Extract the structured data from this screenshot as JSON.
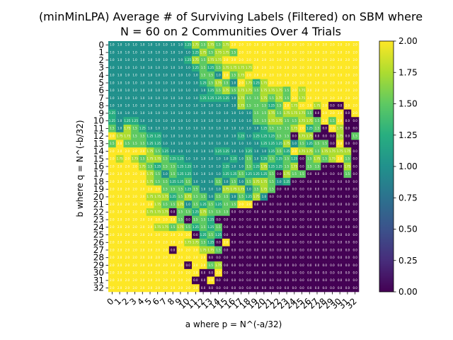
{
  "chart_data": {
    "type": "heatmap",
    "title_lines": [
      "(minMinLPA) Average # of Surviving Labels (Filtered) on SBM where",
      "N = 60 on 2 Communities Over 4 Trials"
    ],
    "xlabel": "a where p = N^(-a/32)",
    "ylabel": "b where q = N^(-b/32)",
    "x_ticks": [
      "0",
      "1",
      "2",
      "3",
      "4",
      "5",
      "6",
      "7",
      "8",
      "9",
      "10",
      "11",
      "12",
      "13",
      "14",
      "15",
      "16",
      "17",
      "18",
      "19",
      "20",
      "21",
      "22",
      "23",
      "24",
      "25",
      "26",
      "27",
      "28",
      "29",
      "30",
      "31",
      "32"
    ],
    "y_ticks": [
      "0",
      "1",
      "2",
      "3",
      "4",
      "5",
      "6",
      "7",
      "8",
      "9",
      "10",
      "11",
      "12",
      "13",
      "14",
      "15",
      "16",
      "17",
      "18",
      "19",
      "20",
      "21",
      "22",
      "23",
      "24",
      "25",
      "26",
      "27",
      "28",
      "29",
      "30",
      "31",
      "32"
    ],
    "colorbar": {
      "min": 0.0,
      "max": 2.0,
      "colormap": "viridis",
      "ticks": [
        "0.00",
        "0.25",
        "0.50",
        "0.75",
        "1.00",
        "1.25",
        "1.50",
        "1.75",
        "2.00"
      ]
    },
    "values": [
      [
        1.0,
        1.0,
        1.0,
        1.0,
        1.0,
        1.0,
        1.0,
        1.0,
        1.0,
        1.0,
        1.25,
        1.75,
        1.5,
        1.75,
        1.5,
        1.75,
        2.0,
        2.0,
        2.0,
        2.0,
        2.0,
        2.0,
        2.0,
        2.0,
        2.0,
        2.0,
        2.0,
        2.0,
        2.0,
        2.0,
        2.0,
        2.0,
        2.0
      ],
      [
        1.0,
        1.0,
        1.0,
        1.0,
        1.0,
        1.0,
        1.0,
        1.0,
        1.0,
        1.0,
        1.0,
        1.25,
        1.75,
        1.5,
        1.75,
        1.75,
        1.5,
        2.0,
        2.0,
        2.0,
        2.0,
        2.0,
        2.0,
        2.0,
        2.0,
        2.0,
        2.0,
        2.0,
        2.0,
        2.0,
        2.0,
        2.0,
        2.0
      ],
      [
        1.0,
        1.0,
        1.0,
        1.0,
        1.0,
        1.0,
        1.0,
        1.0,
        1.0,
        1.0,
        1.25,
        1.75,
        1.5,
        1.75,
        1.75,
        2.0,
        2.0,
        2.0,
        2.0,
        2.0,
        2.0,
        2.0,
        2.0,
        2.0,
        2.0,
        2.0,
        2.0,
        2.0,
        2.0,
        2.0,
        2.0,
        2.0,
        2.0
      ],
      [
        1.0,
        1.0,
        1.0,
        1.0,
        1.0,
        1.0,
        1.0,
        1.0,
        1.0,
        1.0,
        1.0,
        1.25,
        1.5,
        1.25,
        1.5,
        1.75,
        1.75,
        1.75,
        1.75,
        2.0,
        2.0,
        2.0,
        2.0,
        2.0,
        2.0,
        2.0,
        2.0,
        2.0,
        2.0,
        2.0,
        2.0,
        2.0,
        2.0
      ],
      [
        1.0,
        1.0,
        1.0,
        1.0,
        1.0,
        1.0,
        1.0,
        1.0,
        1.0,
        1.0,
        1.0,
        1.0,
        1.5,
        1.5,
        1.0,
        2.0,
        1.5,
        1.75,
        2.0,
        2.0,
        2.0,
        2.0,
        2.0,
        2.0,
        2.0,
        2.0,
        2.0,
        2.0,
        2.0,
        2.0,
        2.0,
        2.0,
        2.0
      ],
      [
        1.0,
        1.0,
        1.0,
        1.0,
        1.0,
        1.0,
        1.0,
        1.0,
        1.0,
        1.0,
        1.0,
        1.0,
        1.25,
        1.5,
        1.75,
        1.5,
        1.0,
        2.0,
        1.75,
        1.25,
        1.75,
        2.0,
        2.0,
        2.0,
        2.0,
        2.0,
        2.0,
        2.0,
        2.0,
        2.0,
        2.0,
        2.0,
        2.0
      ],
      [
        1.0,
        1.0,
        1.0,
        1.0,
        1.0,
        1.0,
        1.0,
        1.0,
        1.0,
        1.0,
        1.0,
        1.0,
        1.0,
        1.25,
        1.5,
        1.75,
        1.5,
        1.75,
        1.75,
        1.5,
        1.75,
        1.75,
        1.75,
        1.5,
        2.0,
        1.75,
        2.0,
        2.0,
        2.0,
        2.0,
        2.0,
        2.0,
        2.0
      ],
      [
        1.0,
        1.0,
        1.0,
        1.0,
        1.0,
        1.0,
        1.0,
        1.0,
        1.0,
        1.0,
        1.0,
        1.0,
        1.25,
        1.25,
        1.25,
        1.25,
        1.0,
        1.75,
        1.5,
        1.5,
        1.75,
        1.5,
        1.75,
        1.5,
        2.0,
        1.75,
        2.0,
        2.0,
        2.0,
        2.0,
        2.0,
        2.0,
        2.0
      ],
      [
        1.0,
        1.0,
        1.0,
        1.0,
        1.0,
        1.0,
        1.0,
        1.0,
        1.0,
        1.0,
        1.0,
        1.0,
        1.0,
        1.0,
        1.0,
        1.0,
        1.0,
        1.75,
        1.5,
        1.5,
        1.5,
        1.25,
        1.5,
        2.0,
        1.75,
        2.0,
        2.0,
        1.75,
        2.0,
        0.0,
        0.0,
        2.0,
        2.0
      ],
      [
        1.25,
        1.0,
        1.0,
        1.0,
        1.0,
        1.0,
        1.0,
        1.0,
        1.0,
        1.0,
        1.0,
        1.0,
        1.0,
        1.0,
        1.0,
        1.0,
        1.0,
        1.0,
        1.0,
        1.5,
        1.5,
        1.75,
        1.5,
        1.75,
        1.75,
        1.75,
        1.5,
        0.0,
        2.0,
        2.0,
        2.0,
        0.0,
        2.0
      ],
      [
        1.25,
        1.0,
        1.25,
        1.25,
        1.0,
        1.0,
        1.0,
        1.0,
        1.0,
        1.0,
        1.0,
        1.0,
        1.0,
        1.0,
        1.0,
        1.0,
        1.0,
        1.0,
        1.0,
        1.5,
        1.5,
        1.75,
        1.75,
        1.5,
        1.5,
        1.75,
        1.75,
        1.5,
        2.0,
        1.5,
        2.0,
        0.0,
        0.0
      ],
      [
        1.5,
        1.0,
        1.75,
        1.5,
        1.25,
        1.0,
        1.0,
        1.0,
        1.0,
        1.0,
        1.0,
        1.0,
        1.0,
        1.0,
        1.0,
        1.0,
        1.0,
        1.0,
        1.0,
        1.0,
        1.25,
        1.5,
        1.5,
        1.5,
        1.75,
        2.0,
        1.25,
        1.5,
        0.0,
        2.0,
        1.75,
        0.0,
        0.0
      ],
      [
        2.0,
        1.75,
        1.75,
        1.5,
        1.5,
        1.25,
        1.25,
        1.0,
        1.0,
        1.0,
        1.0,
        1.0,
        1.0,
        1.0,
        1.0,
        1.0,
        1.0,
        1.25,
        1.0,
        1.25,
        1.25,
        1.25,
        1.5,
        1.5,
        0.0,
        1.75,
        1.75,
        0.0,
        0.0,
        0.0,
        1.75,
        0.0,
        1.5
      ],
      [
        1.5,
        2.0,
        1.5,
        1.5,
        1.5,
        1.25,
        1.25,
        1.0,
        1.0,
        1.0,
        1.0,
        1.0,
        1.0,
        1.0,
        1.0,
        1.0,
        1.0,
        1.0,
        1.0,
        1.0,
        1.25,
        1.25,
        1.25,
        1.75,
        1.0,
        1.5,
        1.25,
        1.5,
        1.5,
        0.0,
        2.0,
        0.0,
        0.0
      ],
      [
        2.0,
        2.0,
        2.0,
        2.0,
        2.0,
        1.75,
        1.5,
        1.25,
        1.0,
        1.0,
        1.0,
        1.0,
        1.0,
        1.0,
        1.25,
        1.25,
        1.0,
        1.0,
        1.25,
        1.0,
        1.0,
        1.25,
        1.5,
        1.25,
        2.0,
        1.75,
        1.75,
        1.5,
        1.75,
        1.75,
        1.75,
        1.75,
        0.0
      ],
      [
        2.0,
        1.75,
        2.0,
        1.75,
        1.5,
        1.75,
        1.75,
        1.5,
        1.25,
        1.25,
        1.0,
        1.0,
        1.0,
        1.0,
        1.0,
        1.0,
        1.25,
        1.0,
        1.5,
        1.0,
        1.25,
        1.5,
        1.25,
        1.5,
        1.25,
        0.0,
        1.5,
        1.75,
        1.5,
        1.75,
        2.0,
        1.5,
        0.0
      ],
      [
        2.0,
        2.0,
        2.0,
        2.0,
        1.75,
        1.5,
        1.25,
        1.5,
        1.5,
        1.25,
        1.25,
        1.0,
        1.0,
        1.0,
        1.0,
        1.25,
        1.0,
        1.0,
        1.5,
        1.25,
        1.75,
        1.25,
        1.25,
        1.5,
        1.75,
        0.0,
        1.5,
        1.5,
        0.0,
        0.0,
        0.0,
        1.75,
        0.0
      ],
      [
        2.0,
        2.0,
        2.0,
        2.0,
        2.0,
        1.75,
        1.5,
        1.0,
        1.5,
        1.25,
        1.25,
        1.0,
        1.0,
        1.0,
        1.0,
        1.25,
        1.25,
        1.5,
        1.25,
        1.25,
        1.25,
        1.5,
        0.0,
        1.75,
        1.5,
        1.5,
        0.0,
        0.0,
        0.0,
        0.0,
        0.0,
        1.5,
        0.0
      ],
      [
        2.0,
        2.0,
        2.0,
        2.0,
        2.0,
        1.75,
        1.5,
        1.5,
        1.25,
        1.25,
        1.5,
        1.0,
        1.0,
        1.0,
        1.5,
        1.0,
        1.5,
        1.0,
        1.5,
        1.75,
        1.75,
        1.5,
        1.0,
        1.25,
        0.0,
        0.0,
        0.0,
        0.0,
        0.0,
        0.0,
        0.0,
        0.0,
        0.0
      ],
      [
        2.0,
        2.0,
        2.0,
        2.0,
        2.0,
        2.0,
        2.0,
        1.5,
        1.5,
        1.5,
        1.25,
        1.5,
        1.0,
        1.0,
        1.0,
        1.75,
        1.75,
        1.75,
        1.0,
        1.5,
        1.75,
        1.5,
        0.0,
        0.0,
        0.0,
        0.0,
        0.0,
        0.0,
        0.0,
        0.0,
        0.0,
        0.0,
        0.0
      ],
      [
        2.0,
        2.0,
        2.0,
        2.0,
        2.0,
        1.75,
        1.75,
        1.75,
        1.25,
        1.5,
        1.75,
        1.5,
        1.5,
        1.0,
        1.5,
        1.5,
        1.0,
        1.5,
        1.25,
        1.75,
        1.0,
        0.0,
        0.0,
        0.0,
        0.0,
        0.0,
        0.0,
        0.0,
        0.0,
        0.0,
        0.0,
        0.0,
        0.0
      ],
      [
        2.0,
        2.0,
        2.0,
        2.0,
        2.0,
        2.0,
        1.75,
        1.5,
        1.5,
        1.75,
        1.0,
        1.5,
        1.25,
        1.5,
        1.25,
        1.5,
        1.5,
        2.0,
        2.0,
        0.0,
        0.0,
        0.0,
        0.0,
        0.0,
        0.0,
        0.0,
        0.0,
        0.0,
        0.0,
        0.0,
        0.0,
        0.0,
        0.0
      ],
      [
        2.0,
        2.0,
        2.0,
        2.0,
        2.0,
        1.75,
        1.75,
        1.75,
        0.0,
        1.5,
        1.5,
        1.25,
        1.75,
        1.5,
        1.5,
        1.5,
        0.0,
        0.0,
        0.0,
        0.0,
        0.0,
        0.0,
        0.0,
        0.0,
        0.0,
        0.0,
        0.0,
        0.0,
        0.0,
        0.0,
        0.0,
        0.0,
        0.0
      ],
      [
        2.0,
        2.0,
        2.0,
        2.0,
        2.0,
        2.0,
        2.0,
        2.0,
        2.0,
        1.5,
        0.0,
        1.5,
        1.5,
        1.25,
        0.0,
        0.0,
        0.0,
        0.0,
        0.0,
        0.0,
        0.0,
        0.0,
        0.0,
        0.0,
        0.0,
        0.0,
        0.0,
        0.0,
        0.0,
        0.0,
        0.0,
        0.0,
        0.0
      ],
      [
        2.0,
        2.0,
        2.0,
        2.0,
        2.0,
        2.0,
        1.75,
        1.75,
        1.5,
        1.75,
        1.5,
        1.25,
        1.5,
        1.25,
        1.5,
        0.0,
        0.0,
        0.0,
        0.0,
        0.0,
        0.0,
        0.0,
        0.0,
        0.0,
        0.0,
        0.0,
        0.0,
        0.0,
        0.0,
        0.0,
        0.0,
        0.0,
        0.0
      ],
      [
        2.0,
        2.0,
        2.0,
        2.0,
        2.0,
        2.0,
        2.0,
        2.0,
        2.0,
        2.0,
        2.0,
        0.0,
        1.25,
        1.5,
        1.25,
        0.0,
        0.0,
        0.0,
        0.0,
        0.0,
        0.0,
        0.0,
        0.0,
        0.0,
        0.0,
        0.0,
        0.0,
        0.0,
        0.0,
        0.0,
        0.0,
        0.0,
        0.0
      ],
      [
        2.0,
        2.0,
        2.0,
        2.0,
        2.0,
        2.0,
        2.0,
        2.0,
        2.0,
        2.0,
        1.75,
        1.75,
        1.5,
        1.25,
        0.0,
        2.0,
        0.0,
        0.0,
        0.0,
        0.0,
        0.0,
        0.0,
        0.0,
        0.0,
        0.0,
        0.0,
        0.0,
        0.0,
        0.0,
        0.0,
        0.0,
        0.0,
        0.0
      ],
      [
        2.0,
        2.0,
        2.0,
        2.0,
        2.0,
        2.0,
        2.0,
        2.0,
        0.0,
        2.0,
        2.0,
        2.0,
        1.75,
        1.75,
        1.5,
        0.0,
        0.0,
        0.0,
        0.0,
        0.0,
        0.0,
        0.0,
        0.0,
        0.0,
        0.0,
        0.0,
        0.0,
        0.0,
        0.0,
        0.0,
        0.0,
        0.0,
        0.0
      ],
      [
        2.0,
        2.0,
        2.0,
        2.0,
        2.0,
        2.0,
        2.0,
        2.0,
        2.0,
        2.0,
        2.0,
        2.0,
        2.0,
        0.0,
        0.0,
        0.0,
        0.0,
        0.0,
        0.0,
        0.0,
        0.0,
        0.0,
        0.0,
        0.0,
        0.0,
        0.0,
        0.0,
        0.0,
        0.0,
        0.0,
        0.0,
        0.0,
        0.0
      ],
      [
        2.0,
        2.0,
        2.0,
        2.0,
        2.0,
        2.0,
        2.0,
        2.0,
        2.0,
        2.0,
        0.0,
        2.0,
        2.0,
        1.5,
        1.75,
        0.0,
        0.0,
        0.0,
        0.0,
        0.0,
        0.0,
        0.0,
        0.0,
        0.0,
        0.0,
        0.0,
        0.0,
        0.0,
        0.0,
        0.0,
        0.0,
        0.0,
        0.0
      ],
      [
        2.0,
        2.0,
        2.0,
        2.0,
        2.0,
        2.0,
        2.0,
        2.0,
        2.0,
        2.0,
        2.0,
        2.0,
        0.0,
        0.0,
        2.0,
        0.0,
        0.0,
        0.0,
        0.0,
        0.0,
        0.0,
        0.0,
        0.0,
        0.0,
        0.0,
        0.0,
        0.0,
        0.0,
        0.0,
        0.0,
        0.0,
        0.0,
        0.0
      ],
      [
        2.0,
        2.0,
        2.0,
        2.0,
        2.0,
        2.0,
        2.0,
        2.0,
        2.0,
        2.0,
        2.0,
        0.0,
        0.0,
        2.0,
        0.0,
        0.0,
        0.0,
        0.0,
        0.0,
        0.0,
        0.0,
        0.0,
        0.0,
        0.0,
        0.0,
        0.0,
        0.0,
        0.0,
        0.0,
        0.0,
        0.0,
        0.0,
        0.0
      ],
      [
        2.0,
        2.0,
        2.0,
        2.0,
        2.0,
        2.0,
        2.0,
        2.0,
        2.0,
        2.0,
        2.0,
        2.0,
        0.0,
        0.0,
        0.0,
        0.0,
        0.0,
        0.0,
        0.0,
        0.0,
        0.0,
        0.0,
        0.0,
        0.0,
        0.0,
        0.0,
        0.0,
        0.0,
        0.0,
        0.0,
        0.0,
        0.0,
        0.0
      ]
    ]
  }
}
